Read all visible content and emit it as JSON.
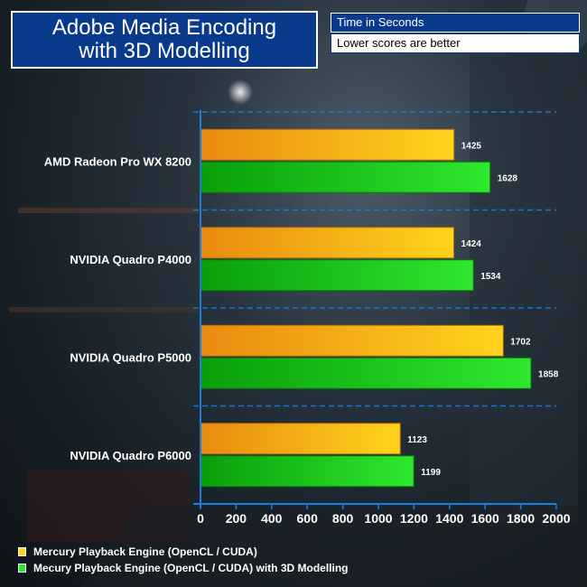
{
  "header": {
    "title_line1": "Adobe Media Encoding",
    "title_line2": "with 3D Modelling",
    "units": "Time in Seconds",
    "note": "Lower scores are better"
  },
  "colors": {
    "series1_start": "#e88a10",
    "series1_end": "#ffd41c",
    "series2_start": "#0a9e0a",
    "series2_end": "#2ee82e",
    "axis": "#1e7be0",
    "label": "#ffffff",
    "title_bg": "#0a3a8c"
  },
  "legend": [
    {
      "label": "Mercury Playback Engine (OpenCL / CUDA)"
    },
    {
      "label": "Mecury Playback Engine (OpenCL / CUDA) with 3D Modelling"
    }
  ],
  "chart_data": {
    "type": "bar",
    "orientation": "horizontal",
    "title": "Adobe Media Encoding with 3D Modelling",
    "xlabel": "Time in Seconds",
    "categories": [
      "AMD Radeon Pro WX 8200",
      "NVIDIA Quadro P4000",
      "NVIDIA Quadro P5000",
      "NVIDIA Quadro P6000"
    ],
    "series": [
      {
        "name": "Mercury Playback Engine (OpenCL / CUDA)",
        "values": [
          1425,
          1424,
          1702,
          1123
        ]
      },
      {
        "name": "Mecury Playback Engine (OpenCL / CUDA) with 3D Modelling",
        "values": [
          1628,
          1534,
          1858,
          1199
        ]
      }
    ],
    "xlim": [
      0,
      2000
    ],
    "xticks": [
      "0",
      "200",
      "400",
      "600",
      "800",
      "1000",
      "1200",
      "1400",
      "1600",
      "1800",
      "2000"
    ],
    "grid": true
  }
}
